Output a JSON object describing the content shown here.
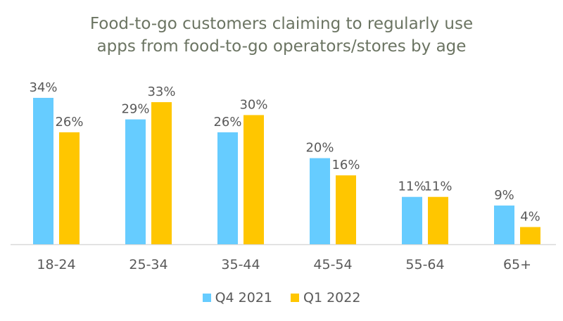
{
  "chart_data": {
    "type": "bar",
    "title": "Food-to-go customers claiming to regularly use apps from food-to-go operators/stores by age",
    "title_lines": [
      "Food-to-go customers claiming to regularly use",
      "apps from food-to-go operators/stores by age"
    ],
    "categories": [
      "18-24",
      "25-34",
      "35-44",
      "45-54",
      "55-64",
      "65+"
    ],
    "series": [
      {
        "name": "Q4 2021",
        "color": "#66ccff",
        "values": [
          34,
          29,
          26,
          20,
          11,
          9
        ],
        "labels": [
          "34%",
          "29%",
          "26%",
          "20%",
          "11%",
          "9%"
        ]
      },
      {
        "name": "Q1 2022",
        "color": "#ffc600",
        "values": [
          26,
          33,
          30,
          16,
          11,
          4
        ],
        "labels": [
          "26%",
          "33%",
          "30%",
          "16%",
          "11%",
          "4%"
        ]
      }
    ],
    "xlabel": "",
    "ylabel": "",
    "ylim": [
      0,
      34
    ],
    "grid": false,
    "legend": "bottom"
  }
}
